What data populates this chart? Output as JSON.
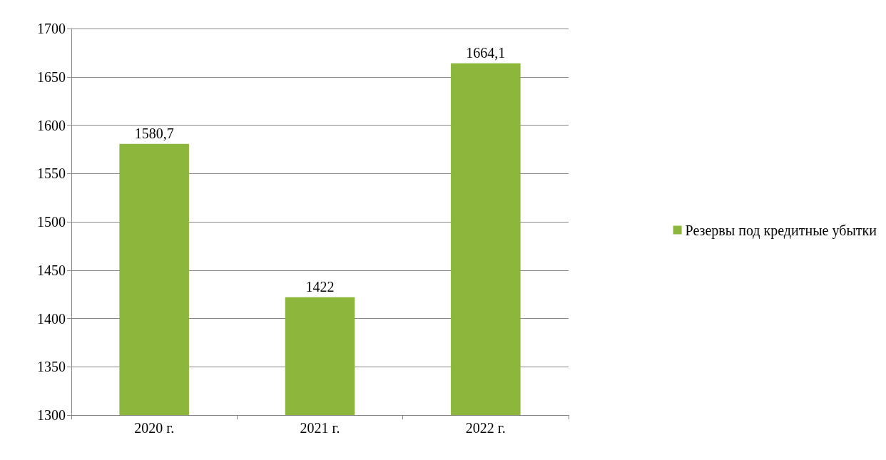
{
  "chart_data": {
    "type": "bar",
    "categories": [
      "2020 г.",
      "2021 г.",
      "2022 г."
    ],
    "series": [
      {
        "name": "Резервы под кредитные убытки",
        "color": "#8cb63c",
        "values": [
          1580.7,
          1422,
          1664.1
        ],
        "value_labels": [
          "1580,7",
          "1422",
          "1664,1"
        ]
      }
    ],
    "ylim": [
      1300,
      1700
    ],
    "yticks": [
      1300,
      1350,
      1400,
      1450,
      1500,
      1550,
      1600,
      1650,
      1700
    ],
    "grid": "y",
    "legend": "right"
  }
}
